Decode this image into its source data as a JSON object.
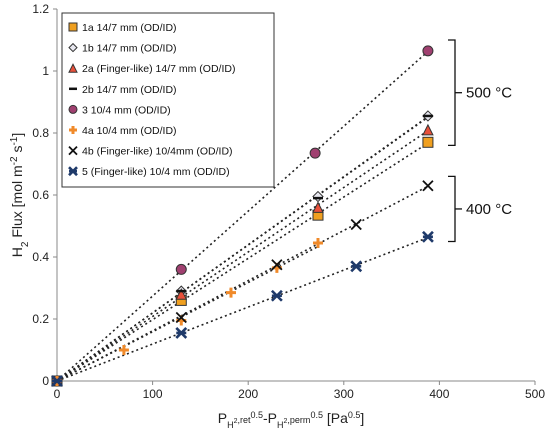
{
  "chart_data": {
    "type": "scatter",
    "ylabel": "H₂ Flux [mol m⁻² s⁻¹]",
    "ylabel_parts": {
      "base": "H",
      "sub": "2",
      "rest1": " Flux [mol m",
      "sup": "-2",
      "rest2": " s",
      "sup2": "-1",
      "rest3": "]"
    },
    "xlabel": "P_H2,ret^0.5 - P_H2,perm^0.5 [Pa^0.5]",
    "xlabel_parts": {
      "p1": "P",
      "s1": "H",
      "s1b": "2",
      "s1c": ",ret",
      "e1": "0.5",
      "dash": "-P",
      "s2": "H",
      "s2b": "2",
      "s2c": ",perm",
      "e2": "0.5",
      "tail": " [Pa",
      "e3": "0.5",
      "tail2": "]"
    },
    "xlim": [
      0,
      500
    ],
    "ylim": [
      0,
      1.2
    ],
    "xticks": [
      0,
      100,
      200,
      300,
      400,
      500
    ],
    "yticks": [
      0,
      0.2,
      0.4,
      0.6,
      0.8,
      1.0,
      1.2
    ],
    "xtick_labels": [
      "0",
      "100",
      "200",
      "300",
      "400",
      "500"
    ],
    "ytick_labels": [
      "0",
      "0.2",
      "0.4",
      "0.6",
      "0.8",
      "1",
      "1.2"
    ],
    "grid": false,
    "legend_position": "top-left",
    "series": [
      {
        "name": "1a 14/7 mm (OD/ID)",
        "marker": "square",
        "color": "#f0a020",
        "stroke": "#333333",
        "x": [
          0,
          130,
          273,
          388
        ],
        "y": [
          0,
          0.26,
          0.535,
          0.77
        ]
      },
      {
        "name": "1b 14/7 mm (OD/ID)",
        "marker": "diamond",
        "color": "#e8e8f0",
        "stroke": "#333333",
        "x": [
          0,
          130,
          273,
          388
        ],
        "y": [
          0,
          0.29,
          0.595,
          0.855
        ]
      },
      {
        "name": "2a (Finger-like) 14/7 mm (OD/ID)",
        "marker": "triangle",
        "color": "#e8503a",
        "stroke": "#333333",
        "x": [
          0,
          130,
          273,
          388
        ],
        "y": [
          0,
          0.28,
          0.56,
          0.81
        ]
      },
      {
        "name": "2b 14/7 mm (OD/ID)",
        "marker": "dash",
        "color": "#111111",
        "stroke": "#111111",
        "x": [
          0,
          130,
          273,
          388
        ],
        "y": [
          0,
          0.29,
          0.59,
          0.855
        ]
      },
      {
        "name": "3 10/4 mm (OD/ID)",
        "marker": "circle",
        "color": "#a04070",
        "stroke": "#333333",
        "x": [
          0,
          130,
          270,
          388
        ],
        "y": [
          0,
          0.36,
          0.735,
          1.065
        ]
      },
      {
        "name": "4a 10/4 mm (OD/ID)",
        "marker": "plus",
        "color": "#f08a2a",
        "stroke": "#333333",
        "x": [
          0,
          70,
          130,
          182,
          230,
          273
        ],
        "y": [
          0,
          0.1,
          0.195,
          0.285,
          0.365,
          0.445
        ]
      },
      {
        "name": "4b (Finger-like) 10/4mm (OD/ID)",
        "marker": "x",
        "color": "#111111",
        "stroke": "#111111",
        "x": [
          0,
          130,
          230,
          313,
          388
        ],
        "y": [
          0,
          0.205,
          0.375,
          0.505,
          0.63
        ]
      },
      {
        "name": "5 (Finger-like) 10/4 mm (OD/ID)",
        "marker": "star",
        "color": "#1f3a6a",
        "stroke": "#1f3a6a",
        "x": [
          0,
          130,
          230,
          313,
          388
        ],
        "y": [
          0,
          0.155,
          0.275,
          0.37,
          0.465
        ]
      }
    ],
    "annotations": [
      {
        "text": "500 °C",
        "y_range": [
          0.76,
          1.1
        ]
      },
      {
        "text": "400 °C",
        "y_range": [
          0.45,
          0.66
        ]
      }
    ]
  }
}
